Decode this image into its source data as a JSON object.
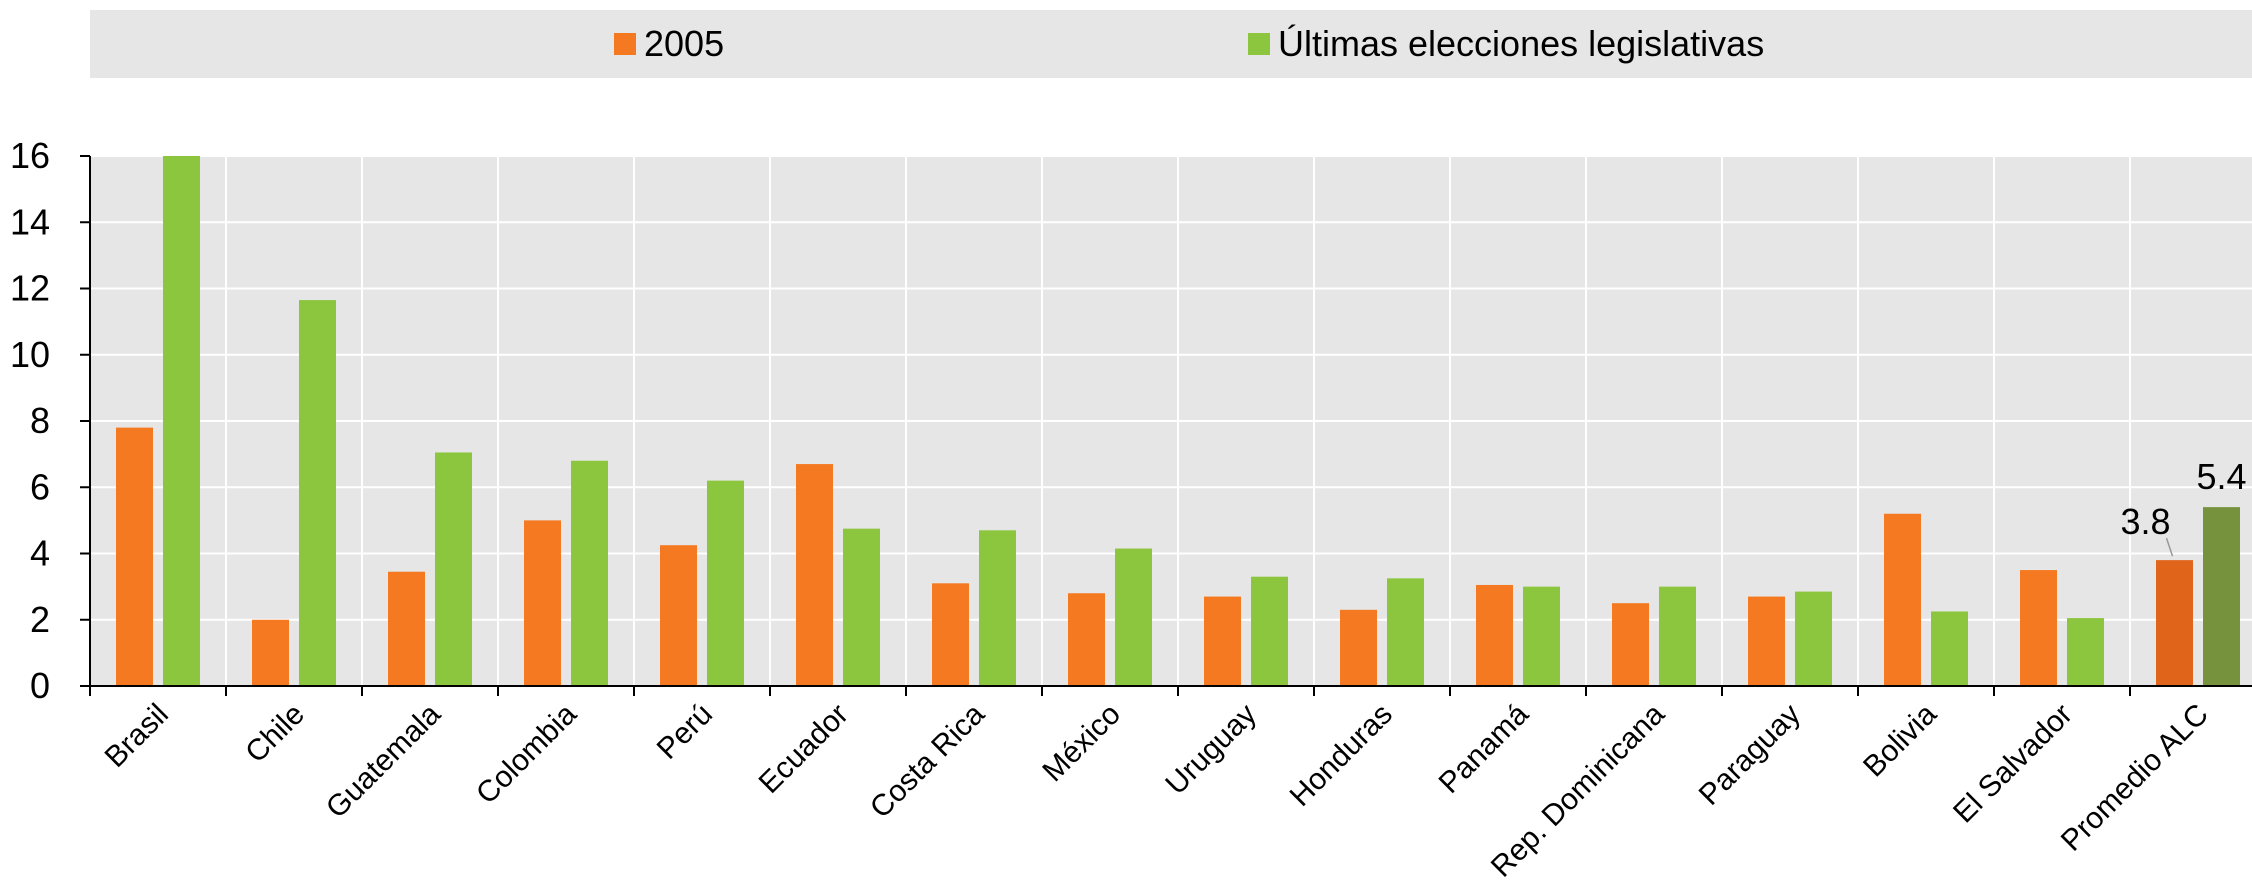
{
  "chart_data": {
    "type": "bar",
    "categories": [
      "Brasil",
      "Chile",
      "Guatemala",
      "Colombia",
      "Perú",
      "Ecuador",
      "Costa Rica",
      "México",
      "Uruguay",
      "Honduras",
      "Panamá",
      "Rep. Dominicana",
      "Paraguay",
      "Bolivia",
      "El Salvador",
      "Promedio ALC"
    ],
    "series": [
      {
        "name": "2005",
        "color": "#f47920",
        "highlight_color": "#e0651a",
        "values": [
          7.8,
          2.0,
          3.45,
          5.0,
          4.25,
          6.7,
          3.1,
          2.8,
          2.7,
          2.3,
          3.05,
          2.5,
          2.7,
          5.2,
          3.5,
          3.8
        ]
      },
      {
        "name": "Últimas elecciones legislativas",
        "color": "#8cc63f",
        "highlight_color": "#76923c",
        "values": [
          16.0,
          11.65,
          7.05,
          6.8,
          6.2,
          4.75,
          4.7,
          4.15,
          3.3,
          3.25,
          3.0,
          3.0,
          2.85,
          2.25,
          2.05,
          5.4
        ]
      }
    ],
    "y_ticks": [
      "0",
      "2",
      "4",
      "6",
      "8",
      "10",
      "12",
      "14",
      "16"
    ],
    "ylim": [
      0,
      16
    ],
    "grid": true,
    "legend_position": "top",
    "data_labels": [
      {
        "category": "Promedio ALC",
        "series": 0,
        "text": "3.8"
      },
      {
        "category": "Promedio ALC",
        "series": 1,
        "text": "5.4"
      }
    ],
    "title": "",
    "xlabel": "",
    "ylabel": ""
  },
  "legend": {
    "items": [
      {
        "label": "2005",
        "color": "#f47920"
      },
      {
        "label": "Últimas elecciones legislativas",
        "color": "#8cc63f"
      }
    ]
  }
}
